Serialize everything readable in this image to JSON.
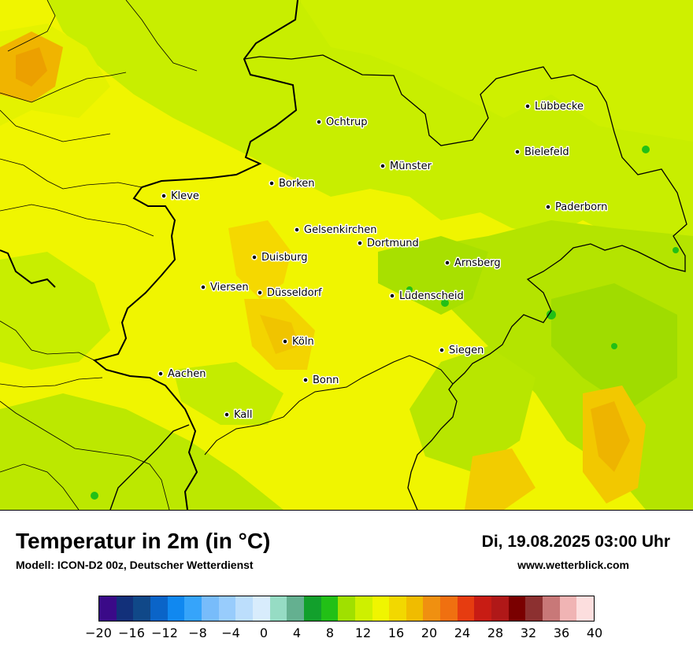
{
  "map": {
    "cities": [
      {
        "name": "Lübbecke",
        "dot": "#000"
      },
      {
        "name": "Ochtrup"
      },
      {
        "name": "Bielefeld"
      },
      {
        "name": "Münster"
      },
      {
        "name": "Borken"
      },
      {
        "name": "Kleve"
      },
      {
        "name": "Paderborn"
      },
      {
        "name": "Gelsenkirchen"
      },
      {
        "name": "Dortmund"
      },
      {
        "name": "Duisburg"
      },
      {
        "name": "Arnsberg"
      },
      {
        "name": "Viersen"
      },
      {
        "name": "Düsseldorf"
      },
      {
        "name": "Lüdenscheid"
      },
      {
        "name": "Köln"
      },
      {
        "name": "Siegen"
      },
      {
        "name": "Aachen"
      },
      {
        "name": "Bonn"
      },
      {
        "name": "Kall"
      }
    ],
    "field_colors": {
      "base": "#f0f500",
      "light_green": "#c8ee00",
      "green": "#a5e000",
      "orange": "#f5c800",
      "dark_orange": "#f0a400",
      "deep_green": "#20c020"
    }
  },
  "header": {
    "title": "Temperatur in 2m (in °C)",
    "subtitle": "Modell: ICON-D2 00z, Deutscher Wetterdienst",
    "datetime": "Di, 19.08.2025 03:00 Uhr",
    "website": "www.wetterblick.com"
  },
  "legend": {
    "colors": [
      "#3a0a88",
      "#12307a",
      "#104888",
      "#0a64c8",
      "#1088f0",
      "#36a4fa",
      "#78bcfa",
      "#98ccfc",
      "#bcdefc",
      "#d8ecfc",
      "#96dcc4",
      "#64b090",
      "#12a02c",
      "#22c016",
      "#a0e000",
      "#cef000",
      "#f0f500",
      "#f2d800",
      "#f0bc00",
      "#f09010",
      "#f07010",
      "#e63c10",
      "#c81c14",
      "#b01818",
      "#7a0000",
      "#8c3030",
      "#c87878",
      "#f0b4b4",
      "#fcdede"
    ],
    "ticks": [
      "−20",
      "−16",
      "−12",
      "−8",
      "−4",
      "0",
      "4",
      "8",
      "12",
      "16",
      "20",
      "24",
      "28",
      "32",
      "36",
      "40"
    ]
  }
}
